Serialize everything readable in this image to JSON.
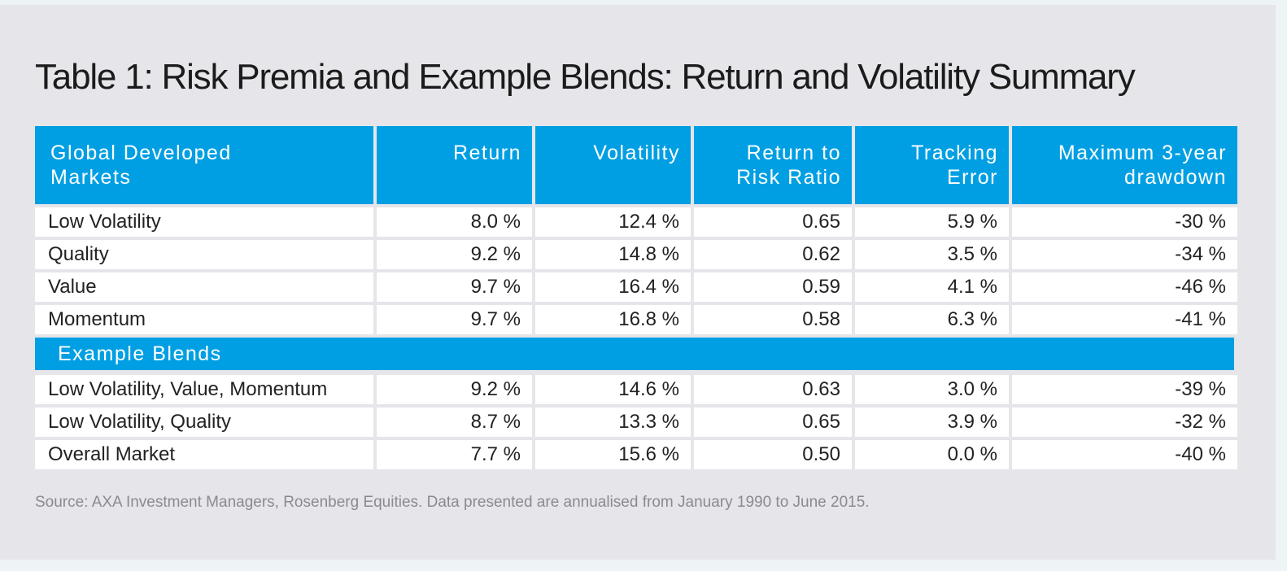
{
  "title": "Table 1: Risk Premia and Example Blends: Return and Volatility Summary",
  "colors": {
    "header_bg": "#009fe3",
    "header_text": "#ffffff",
    "panel_bg": "#e5e5ea",
    "cell_bg": "#ffffff",
    "source_text": "#8a8a8f"
  },
  "table": {
    "headers": [
      [
        "Global Developed",
        "Markets"
      ],
      [
        "Return"
      ],
      [
        "Volatility"
      ],
      [
        "Return to",
        "Risk Ratio"
      ],
      [
        "Tracking",
        "Error"
      ],
      [
        "Maximum 3-year",
        "drawdown"
      ]
    ],
    "rows": [
      [
        "Low Volatility",
        "8.0 %",
        "12.4 %",
        "0.65",
        "5.9 %",
        "-30 %"
      ],
      [
        "Quality",
        "9.2 %",
        "14.8 %",
        "0.62",
        "3.5 %",
        "-34 %"
      ],
      [
        "Value",
        "9.7 %",
        "16.4 %",
        "0.59",
        "4.1 %",
        "-46 %"
      ],
      [
        "Momentum",
        "9.7 %",
        "16.8 %",
        "0.58",
        "6.3 %",
        "-41 %"
      ]
    ],
    "section_label": "Example Blends",
    "blend_rows": [
      [
        "Low Volatility, Value, Momentum",
        "9.2 %",
        "14.6 %",
        "0.63",
        "3.0 %",
        "-39 %"
      ],
      [
        "Low Volatility, Quality",
        "8.7 %",
        "13.3 %",
        "0.65",
        "3.9 %",
        "-32 %"
      ],
      [
        "Overall Market",
        "7.7 %",
        "15.6 %",
        "0.50",
        "0.0 %",
        "-40 %"
      ]
    ]
  },
  "source": "Source: AXA Investment Managers, Rosenberg Equities. Data presented are annualised from January 1990 to June 2015."
}
